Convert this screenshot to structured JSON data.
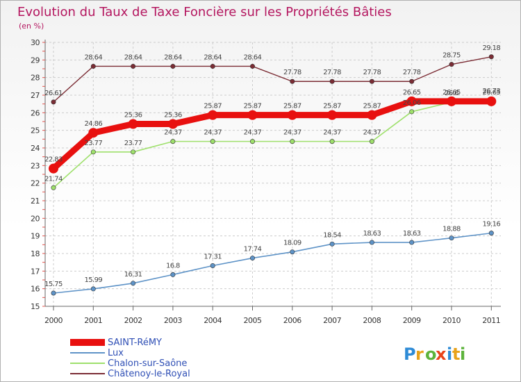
{
  "chart_data": {
    "type": "line",
    "title": "Evolution du Taux de Taxe Foncière sur les Propriétés Bâties",
    "ylabel": "(en %)",
    "xlabel": "",
    "ylim": [
      15,
      30
    ],
    "yticks": [
      15,
      16,
      17,
      18,
      19,
      20,
      21,
      22,
      23,
      24,
      25,
      26,
      27,
      28,
      29,
      30
    ],
    "categories": [
      "2000",
      "2001",
      "2002",
      "2003",
      "2004",
      "2005",
      "2006",
      "2007",
      "2008",
      "2009",
      "2010",
      "2011"
    ],
    "grid": true,
    "series": [
      {
        "name": "SAINT-RéMY",
        "color": "#e8100f",
        "values": [
          22.83,
          24.86,
          25.36,
          25.36,
          25.87,
          25.87,
          25.87,
          25.87,
          25.87,
          26.65,
          26.65,
          26.65
        ],
        "labels": [
          "22.83",
          "24.86",
          "25.36",
          "25.36",
          "25.87",
          "25.87",
          "25.87",
          "25.87",
          "25.87",
          "26.65",
          "26.65",
          "26.65"
        ]
      },
      {
        "name": "Lux",
        "color": "#5e93c7",
        "values": [
          15.75,
          15.99,
          16.31,
          16.8,
          17.31,
          17.74,
          18.09,
          18.54,
          18.63,
          18.63,
          18.88,
          19.16
        ],
        "labels": [
          "15.75",
          "15.99",
          "16.31",
          "16.8",
          "17.31",
          "17.74",
          "18.09",
          "18.54",
          "18.63",
          "18.63",
          "18.88",
          "19.16"
        ]
      },
      {
        "name": "Chalon-sur-Saône",
        "color": "#9ee06b",
        "values": [
          21.74,
          23.77,
          23.77,
          24.37,
          24.37,
          24.37,
          24.37,
          24.37,
          24.37,
          26.06,
          26.6,
          26.73
        ],
        "labels": [
          "21.74",
          "23.77",
          "23.77",
          "24.37",
          "24.37",
          "24.37",
          "24.37",
          "24.37",
          "24.37",
          "26.06",
          "26.6",
          "26.73"
        ]
      },
      {
        "name": "Châtenoy-le-Royal",
        "color": "#7b2c34",
        "values": [
          26.61,
          28.64,
          28.64,
          28.64,
          28.64,
          28.64,
          27.78,
          27.78,
          27.78,
          27.78,
          28.75,
          29.18
        ],
        "labels": [
          "26.61",
          "28.64",
          "28.64",
          "28.64",
          "28.64",
          "28.64",
          "27.78",
          "27.78",
          "27.78",
          "27.78",
          "28.75",
          "29.18"
        ]
      }
    ],
    "legend_position": "bottom-left"
  },
  "brand": {
    "logo_text": "Proxiti"
  }
}
